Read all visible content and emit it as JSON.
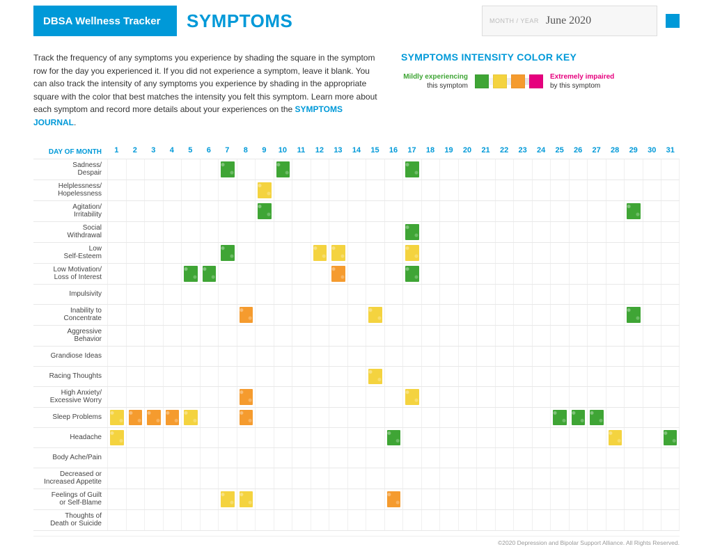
{
  "colors": {
    "brand": "#0099d8",
    "border": "#e8e8e8",
    "cell_border": "#f0f0f0",
    "text": "#333333",
    "muted": "#999999"
  },
  "header": {
    "brand": "DBSA Wellness Tracker",
    "section": "SYMPTOMS",
    "month_label": "MONTH / YEAR",
    "month_value": "June 2020"
  },
  "intro": {
    "text": "Track the frequency of any symptoms you experience by shading the square in the symptom row for the day you experienced it. If you did not experience a symptom, leave it blank. You can also track the intensity of any symptoms you experience by shading in the appropriate square with the color that best matches the intensity you felt this symptom. Learn more about each symptom and record more details about your experiences on the ",
    "link_text": "SYMPTOMS JOURNAL",
    "link_suffix": "."
  },
  "legend": {
    "title": "SYMPTOMS INTENSITY COLOR KEY",
    "left_strong": "Mildly experiencing",
    "left_sub": "this symptom",
    "right_strong": "Extremely impaired",
    "right_sub": "by this symptom",
    "levels": [
      {
        "key": "mild",
        "color": "#3fa535"
      },
      {
        "key": "moderate",
        "color": "#f4d33f"
      },
      {
        "key": "high",
        "color": "#f59b2e"
      },
      {
        "key": "extreme",
        "color": "#e6007e"
      }
    ]
  },
  "grid": {
    "day_label": "DAY OF MONTH",
    "days": 31,
    "symptoms": [
      "Sadness/\nDespair",
      "Helplessness/\nHopelessness",
      "Agitation/\nIrritability",
      "Social\nWithdrawal",
      "Low\nSelf-Esteem",
      "Low Motivation/\nLoss of Interest",
      "Impulsivity",
      "Inability to\nConcentrate",
      "Aggressive\nBehavior",
      "Grandiose Ideas",
      "Racing Thoughts",
      "High Anxiety/\nExcessive Worry",
      "Sleep Problems",
      "Headache",
      "Body Ache/Pain",
      "Decreased or\nIncreased Appetite",
      "Feelings of Guilt\nor Self-Blame",
      "Thoughts of\nDeath or Suicide"
    ],
    "entries": [
      {
        "row": 0,
        "day": 7,
        "level": "mild"
      },
      {
        "row": 0,
        "day": 10,
        "level": "mild"
      },
      {
        "row": 0,
        "day": 17,
        "level": "mild"
      },
      {
        "row": 1,
        "day": 9,
        "level": "moderate"
      },
      {
        "row": 2,
        "day": 9,
        "level": "mild"
      },
      {
        "row": 2,
        "day": 29,
        "level": "mild"
      },
      {
        "row": 3,
        "day": 17,
        "level": "mild"
      },
      {
        "row": 4,
        "day": 7,
        "level": "mild"
      },
      {
        "row": 4,
        "day": 12,
        "level": "moderate"
      },
      {
        "row": 4,
        "day": 13,
        "level": "moderate"
      },
      {
        "row": 4,
        "day": 17,
        "level": "moderate"
      },
      {
        "row": 5,
        "day": 5,
        "level": "mild"
      },
      {
        "row": 5,
        "day": 6,
        "level": "mild"
      },
      {
        "row": 5,
        "day": 13,
        "level": "high"
      },
      {
        "row": 5,
        "day": 17,
        "level": "mild"
      },
      {
        "row": 7,
        "day": 8,
        "level": "high"
      },
      {
        "row": 7,
        "day": 15,
        "level": "moderate"
      },
      {
        "row": 7,
        "day": 29,
        "level": "mild"
      },
      {
        "row": 10,
        "day": 15,
        "level": "moderate"
      },
      {
        "row": 11,
        "day": 8,
        "level": "high"
      },
      {
        "row": 11,
        "day": 17,
        "level": "moderate"
      },
      {
        "row": 12,
        "day": 1,
        "level": "moderate"
      },
      {
        "row": 12,
        "day": 2,
        "level": "high"
      },
      {
        "row": 12,
        "day": 3,
        "level": "high"
      },
      {
        "row": 12,
        "day": 4,
        "level": "high"
      },
      {
        "row": 12,
        "day": 5,
        "level": "moderate"
      },
      {
        "row": 12,
        "day": 8,
        "level": "high"
      },
      {
        "row": 12,
        "day": 25,
        "level": "mild"
      },
      {
        "row": 12,
        "day": 26,
        "level": "mild"
      },
      {
        "row": 12,
        "day": 27,
        "level": "mild"
      },
      {
        "row": 13,
        "day": 1,
        "level": "moderate"
      },
      {
        "row": 13,
        "day": 16,
        "level": "mild"
      },
      {
        "row": 13,
        "day": 28,
        "level": "moderate"
      },
      {
        "row": 13,
        "day": 31,
        "level": "mild"
      },
      {
        "row": 16,
        "day": 7,
        "level": "moderate"
      },
      {
        "row": 16,
        "day": 8,
        "level": "moderate"
      },
      {
        "row": 16,
        "day": 16,
        "level": "high"
      }
    ]
  },
  "footer": "©2020 Depression and Bipolar Support Alliance. All Rights Reserved."
}
